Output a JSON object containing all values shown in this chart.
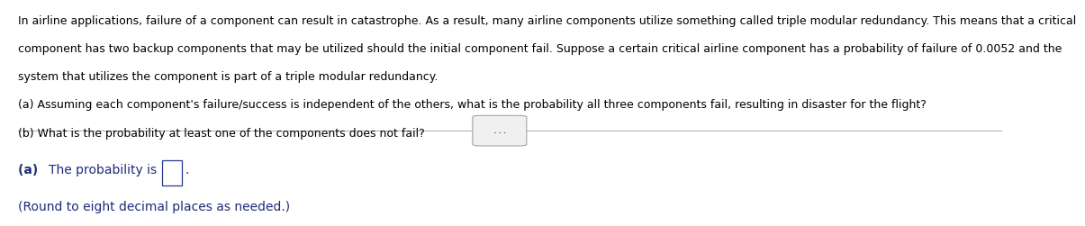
{
  "bg_color": "#ffffff",
  "line1": "In airline applications, failure of a component can result in catastrophe. As a result, many airline components utilize something called triple modular redundancy. This means that a critical",
  "line2": "component has two backup components that may be utilized should the initial component fail. Suppose a certain critical airline component has a probability of failure of 0.0052 and the",
  "line3": "system that utilizes the component is part of a triple modular redundancy.",
  "line4": "(a) Assuming each component's failure/success is independent of the others, what is the probability all three components fail, resulting in disaster for the flight?",
  "line5": "(b) What is the probability at least one of the components does not fail?",
  "answer_a_prefix": "(a) ",
  "answer_a_rest": "The probability is",
  "answer_b": "(Round to eight decimal places as needed.)",
  "dots_text": "...",
  "text_color": "#000000",
  "bold_color": "#1a1a1a",
  "blue_color": "#1f2b7a",
  "separator_color": "#b0b0b0",
  "box_color": "#2a3a8a",
  "font_size": 9.0,
  "font_size_ans": 10.0
}
